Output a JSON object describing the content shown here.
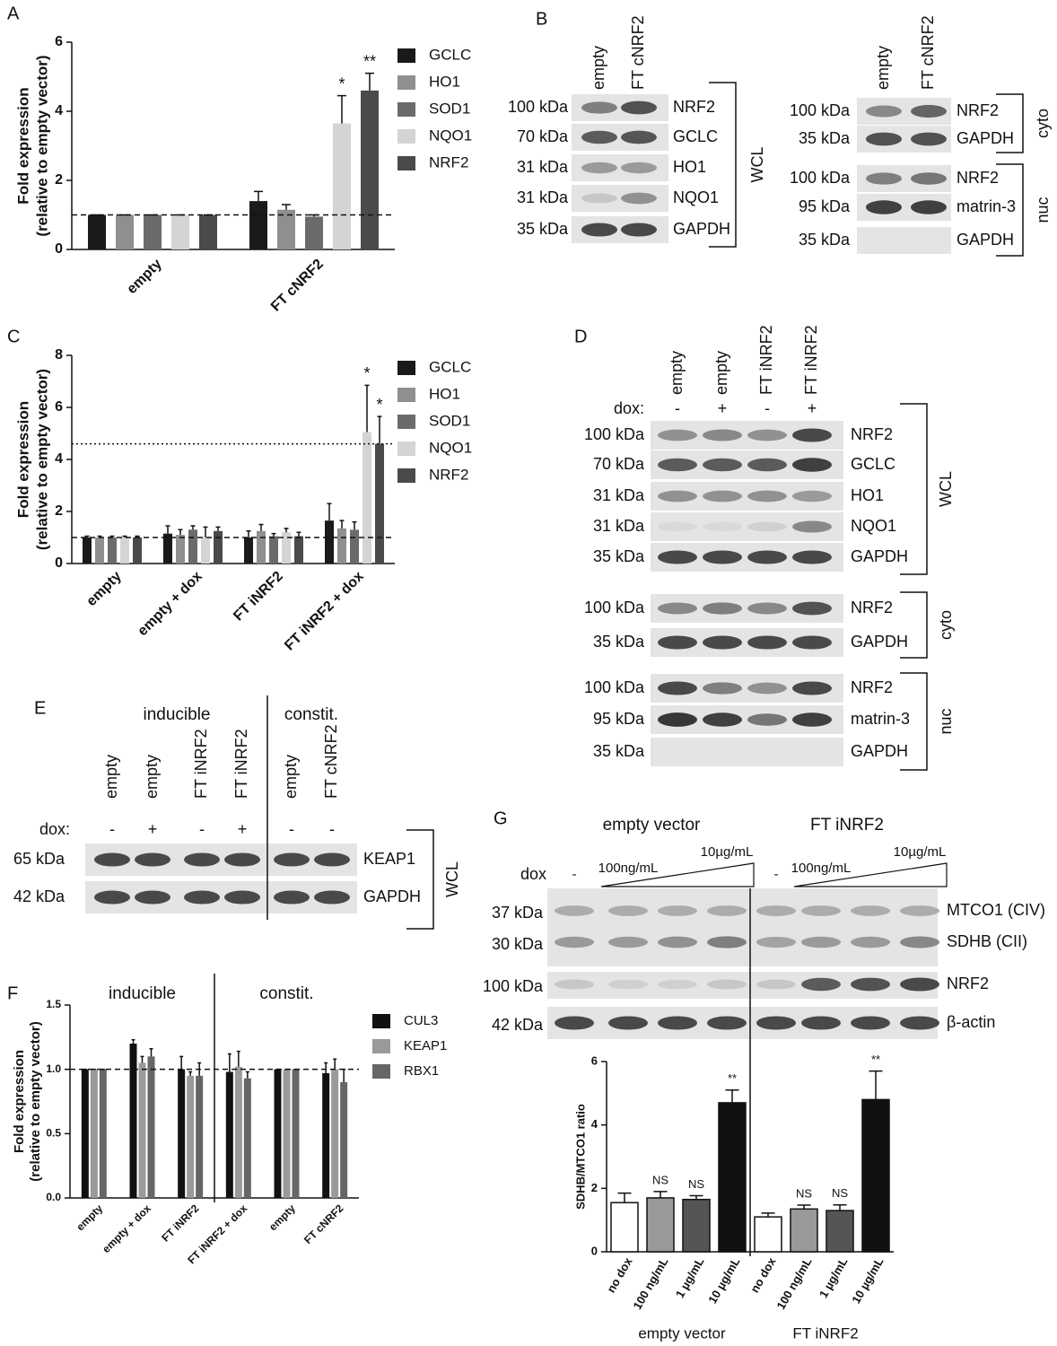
{
  "chart_data": [
    {
      "panel": "A",
      "type": "bar",
      "categories": [
        "empty",
        "FT cNRF2"
      ],
      "y_label": [
        "Fold expression",
        "(relative to empty vector)"
      ],
      "ylim": [
        0,
        6
      ],
      "yticks": [
        0,
        2,
        4,
        6
      ],
      "ref_lines": [
        {
          "value": 1,
          "style": "dashed"
        }
      ],
      "series": [
        {
          "name": "GCLC",
          "color": "#1a1a1a",
          "values": [
            1,
            1.4
          ],
          "errors": [
            0,
            0.28
          ]
        },
        {
          "name": "HO1",
          "color": "#8f8f8f",
          "values": [
            1,
            1.15
          ],
          "errors": [
            0,
            0.15
          ]
        },
        {
          "name": "SOD1",
          "color": "#6b6b6b",
          "values": [
            1,
            0.95
          ],
          "errors": [
            0,
            0.05
          ]
        },
        {
          "name": "NQO1",
          "color": "#d4d4d4",
          "values": [
            1,
            3.65
          ],
          "errors": [
            0,
            0.8
          ],
          "sig_labels": [
            null,
            "*"
          ]
        },
        {
          "name": "NRF2",
          "color": "#4a4a4a",
          "values": [
            1,
            4.6
          ],
          "errors": [
            0,
            0.5
          ],
          "sig_labels": [
            null,
            "**"
          ]
        }
      ]
    },
    {
      "panel": "C",
      "type": "bar",
      "categories": [
        "empty",
        "empty + dox",
        "FT iNRF2",
        "FT iNRF2 + dox"
      ],
      "y_label": [
        "Fold expression",
        "(relative to empty vector)"
      ],
      "ylim": [
        0,
        8
      ],
      "yticks": [
        0,
        2,
        4,
        6,
        8
      ],
      "ref_lines": [
        {
          "value": 1,
          "style": "dashed"
        },
        {
          "value": 4.6,
          "style": "dotted"
        }
      ],
      "series": [
        {
          "name": "GCLC",
          "color": "#1a1a1a",
          "values": [
            1,
            1.15,
            1.0,
            1.65
          ],
          "errors": [
            0.05,
            0.3,
            0.25,
            0.65
          ]
        },
        {
          "name": "HO1",
          "color": "#8f8f8f",
          "values": [
            1,
            1.1,
            1.25,
            1.35
          ],
          "errors": [
            0.05,
            0.2,
            0.25,
            0.3
          ]
        },
        {
          "name": "SOD1",
          "color": "#6b6b6b",
          "values": [
            1,
            1.3,
            1.05,
            1.3
          ],
          "errors": [
            0.05,
            0.15,
            0.1,
            0.3
          ]
        },
        {
          "name": "NQO1",
          "color": "#d4d4d4",
          "values": [
            1,
            1.0,
            1.2,
            5.05
          ],
          "errors": [
            0.05,
            0.4,
            0.15,
            1.8
          ],
          "sig_labels": [
            null,
            null,
            null,
            "*"
          ]
        },
        {
          "name": "NRF2",
          "color": "#4a4a4a",
          "values": [
            1,
            1.25,
            1.05,
            4.6
          ],
          "errors": [
            0.05,
            0.15,
            0.15,
            1.05
          ],
          "sig_labels": [
            null,
            null,
            null,
            "*"
          ]
        }
      ]
    },
    {
      "panel": "F",
      "type": "bar",
      "categories": [
        "empty",
        "empty + dox",
        "FT iNRF2",
        "FT iNRF2 + dox",
        "empty",
        "FT cNRF2"
      ],
      "group_labels": [
        "inducible",
        "constit."
      ],
      "y_label": [
        "Fold expression",
        "(relative to empty vector)"
      ],
      "ylim": [
        0,
        1.5
      ],
      "yticks": [
        {
          "value": 0,
          "label": "0.0"
        },
        {
          "value": 0.5,
          "label": "0.5"
        },
        {
          "value": 1,
          "label": "1.0"
        },
        {
          "value": 1.5,
          "label": "1.5"
        }
      ],
      "ref_lines": [
        {
          "value": 1,
          "style": "dashed"
        }
      ],
      "series": [
        {
          "name": "CUL3",
          "color": "#111111",
          "values": [
            1,
            1.2,
            1.0,
            0.98,
            1,
            0.97
          ],
          "errors": [
            0,
            0.03,
            0.1,
            0.14,
            0,
            0.08
          ]
        },
        {
          "name": "KEAP1",
          "color": "#9a9a9a",
          "values": [
            1,
            1.05,
            0.95,
            1.02,
            1,
            1.0
          ],
          "errors": [
            0,
            0.05,
            0.03,
            0.12,
            0,
            0.08
          ]
        },
        {
          "name": "RBX1",
          "color": "#666666",
          "values": [
            1,
            1.1,
            0.95,
            0.93,
            1,
            0.9
          ],
          "errors": [
            0,
            0.06,
            0.1,
            0.05,
            0,
            0.1
          ]
        }
      ]
    },
    {
      "type": "bar",
      "categories": [
        "no dox",
        "100 ng/mL",
        "1 µg/mL",
        "10 µg/mL",
        "no dox",
        "100 ng/mL",
        "1 µg/mL",
        "10 µg/mL"
      ],
      "group_labels": [
        "empty vector",
        "FT iNRF2"
      ],
      "y_label": "SDHB/MTCO1 ratio",
      "ylim": [
        0,
        6
      ],
      "yticks": [
        0,
        2,
        4,
        6
      ],
      "values": [
        1.55,
        1.7,
        1.65,
        4.7,
        1.1,
        1.35,
        1.3,
        4.8
      ],
      "errors": [
        0.3,
        0.2,
        0.12,
        0.4,
        0.12,
        0.12,
        0.18,
        0.9
      ],
      "colors": [
        "#ffffff",
        "#999999",
        "#555555",
        "#111111",
        "#ffffff",
        "#999999",
        "#555555",
        "#111111"
      ],
      "sig_labels": [
        null,
        "NS",
        "NS",
        "**",
        null,
        "NS",
        "NS",
        "**"
      ]
    }
  ],
  "blots": [
    {
      "panel": "B",
      "lanes": [
        "empty",
        "FT cNRF2"
      ],
      "groups": [
        {
          "name": "WCL",
          "rows": [
            {
              "size": "100 kDa",
              "protein": "NRF2"
            },
            {
              "size": "70 kDa",
              "protein": "GCLC"
            },
            {
              "size": "31 kDa",
              "protein": "HO1"
            },
            {
              "size": "31 kDa",
              "protein": "NQO1"
            },
            {
              "size": "35 kDa",
              "protein": "GAPDH"
            }
          ]
        }
      ]
    },
    {
      "lanes": [
        "empty",
        "FT cNRF2"
      ],
      "groups": [
        {
          "name": "cyto",
          "rows": [
            {
              "size": "100 kDa",
              "protein": "NRF2"
            },
            {
              "size": "35 kDa",
              "protein": "GAPDH"
            }
          ]
        },
        {
          "name": "nuc",
          "rows": [
            {
              "size": "100 kDa",
              "protein": "NRF2"
            },
            {
              "size": "95 kDa",
              "protein": "matrin-3"
            },
            {
              "size": "35 kDa",
              "protein": "GAPDH"
            }
          ]
        }
      ]
    },
    {
      "panel": "D",
      "lanes": [
        "empty",
        "empty",
        "FT iNRF2",
        "FT iNRF2"
      ],
      "treatment_label": "dox:",
      "treatment": [
        "-",
        "+",
        "-",
        "+"
      ],
      "groups": [
        {
          "name": "WCL",
          "rows": [
            {
              "size": "100 kDa",
              "protein": "NRF2"
            },
            {
              "size": "70 kDa",
              "protein": "GCLC"
            },
            {
              "size": "31 kDa",
              "protein": "HO1"
            },
            {
              "size": "31 kDa",
              "protein": "NQO1"
            },
            {
              "size": "35 kDa",
              "protein": "GAPDH"
            }
          ]
        },
        {
          "name": "cyto",
          "rows": [
            {
              "size": "100 kDa",
              "protein": "NRF2"
            },
            {
              "size": "35 kDa",
              "protein": "GAPDH"
            }
          ]
        },
        {
          "name": "nuc",
          "rows": [
            {
              "size": "100 kDa",
              "protein": "NRF2"
            },
            {
              "size": "95 kDa",
              "protein": "matrin-3"
            },
            {
              "size": "35 kDa",
              "protein": "GAPDH"
            }
          ]
        }
      ]
    },
    {
      "panel": "E",
      "sections": [
        "inducible",
        "constit."
      ],
      "lanes": [
        "empty",
        "empty",
        "FT iNRF2",
        "FT iNRF2",
        "empty",
        "FT cNRF2"
      ],
      "treatment_label": "dox:",
      "treatment": [
        "-",
        "+",
        "-",
        "+",
        "-",
        "-"
      ],
      "groups": [
        {
          "name": "WCL",
          "rows": [
            {
              "size": "65 kDa",
              "protein": "KEAP1"
            },
            {
              "size": "42 kDa",
              "protein": "GAPDH"
            }
          ]
        }
      ]
    },
    {
      "panel": "G",
      "sections": [
        "empty vector",
        "FT iNRF2"
      ],
      "treatment_label": "dox",
      "doses": [
        [
          "-",
          "100ng/mL",
          "10µg/mL"
        ],
        [
          "-",
          "100ng/mL",
          "10µg/mL"
        ]
      ],
      "groups": [
        {
          "rows": [
            {
              "size": "37 kDa",
              "protein": "MTCO1 (CIV)"
            },
            {
              "size": "30 kDa",
              "protein": "SDHB (CII)"
            },
            {
              "size": "100 kDa",
              "protein": "NRF2"
            },
            {
              "size": "42 kDa",
              "protein": "β-actin"
            }
          ]
        }
      ]
    }
  ]
}
